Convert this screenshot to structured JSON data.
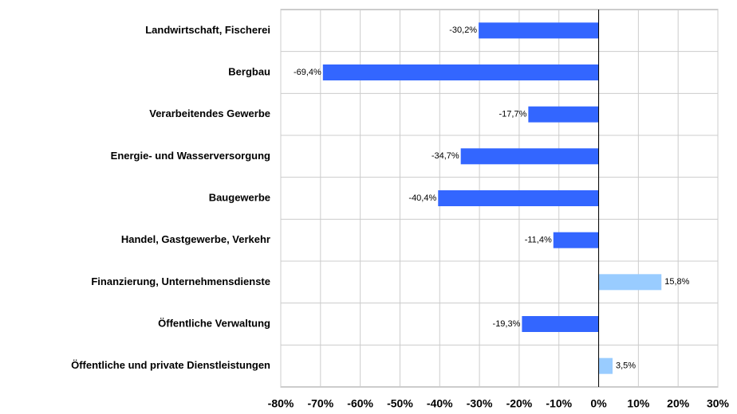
{
  "chart_data": {
    "type": "hbar",
    "categories": [
      "Landwirtschaft, Fischerei",
      "Bergbau",
      "Verarbeitendes Gewerbe",
      "Energie- und Wasserversorgung",
      "Baugewerbe",
      "Handel, Gastgewerbe, Verkehr",
      "Finanzierung, Unternehmensdienste",
      "Öffentliche Verwaltung",
      "Öffentliche und private Dienstleistungen"
    ],
    "values": [
      -30.2,
      -69.4,
      -17.7,
      -34.7,
      -40.4,
      -11.4,
      15.8,
      -19.3,
      3.5
    ],
    "value_labels": [
      "-30,2%",
      "-69,4%",
      "-17,7%",
      "-34,7%",
      "-40,4%",
      "-11,4%",
      "15,8%",
      "-19,3%",
      "3,5%"
    ],
    "colors": [
      "#3366ff",
      "#3366ff",
      "#3366ff",
      "#3366ff",
      "#3366ff",
      "#3366ff",
      "#99ccff",
      "#3366ff",
      "#99ccff"
    ],
    "xlim": [
      -80,
      30
    ],
    "xticks": [
      {
        "value": -80,
        "label": "-80%"
      },
      {
        "value": -70,
        "label": "-70%"
      },
      {
        "value": -60,
        "label": "-60%"
      },
      {
        "value": -50,
        "label": "-50%"
      },
      {
        "value": -40,
        "label": "-40%"
      },
      {
        "value": -30,
        "label": "-30%"
      },
      {
        "value": -20,
        "label": "-20%"
      },
      {
        "value": -10,
        "label": "-10%"
      },
      {
        "value": 0,
        "label": "0%"
      },
      {
        "value": 10,
        "label": "10%"
      },
      {
        "value": 20,
        "label": "20%"
      },
      {
        "value": 30,
        "label": "30%"
      }
    ],
    "grid": true
  }
}
